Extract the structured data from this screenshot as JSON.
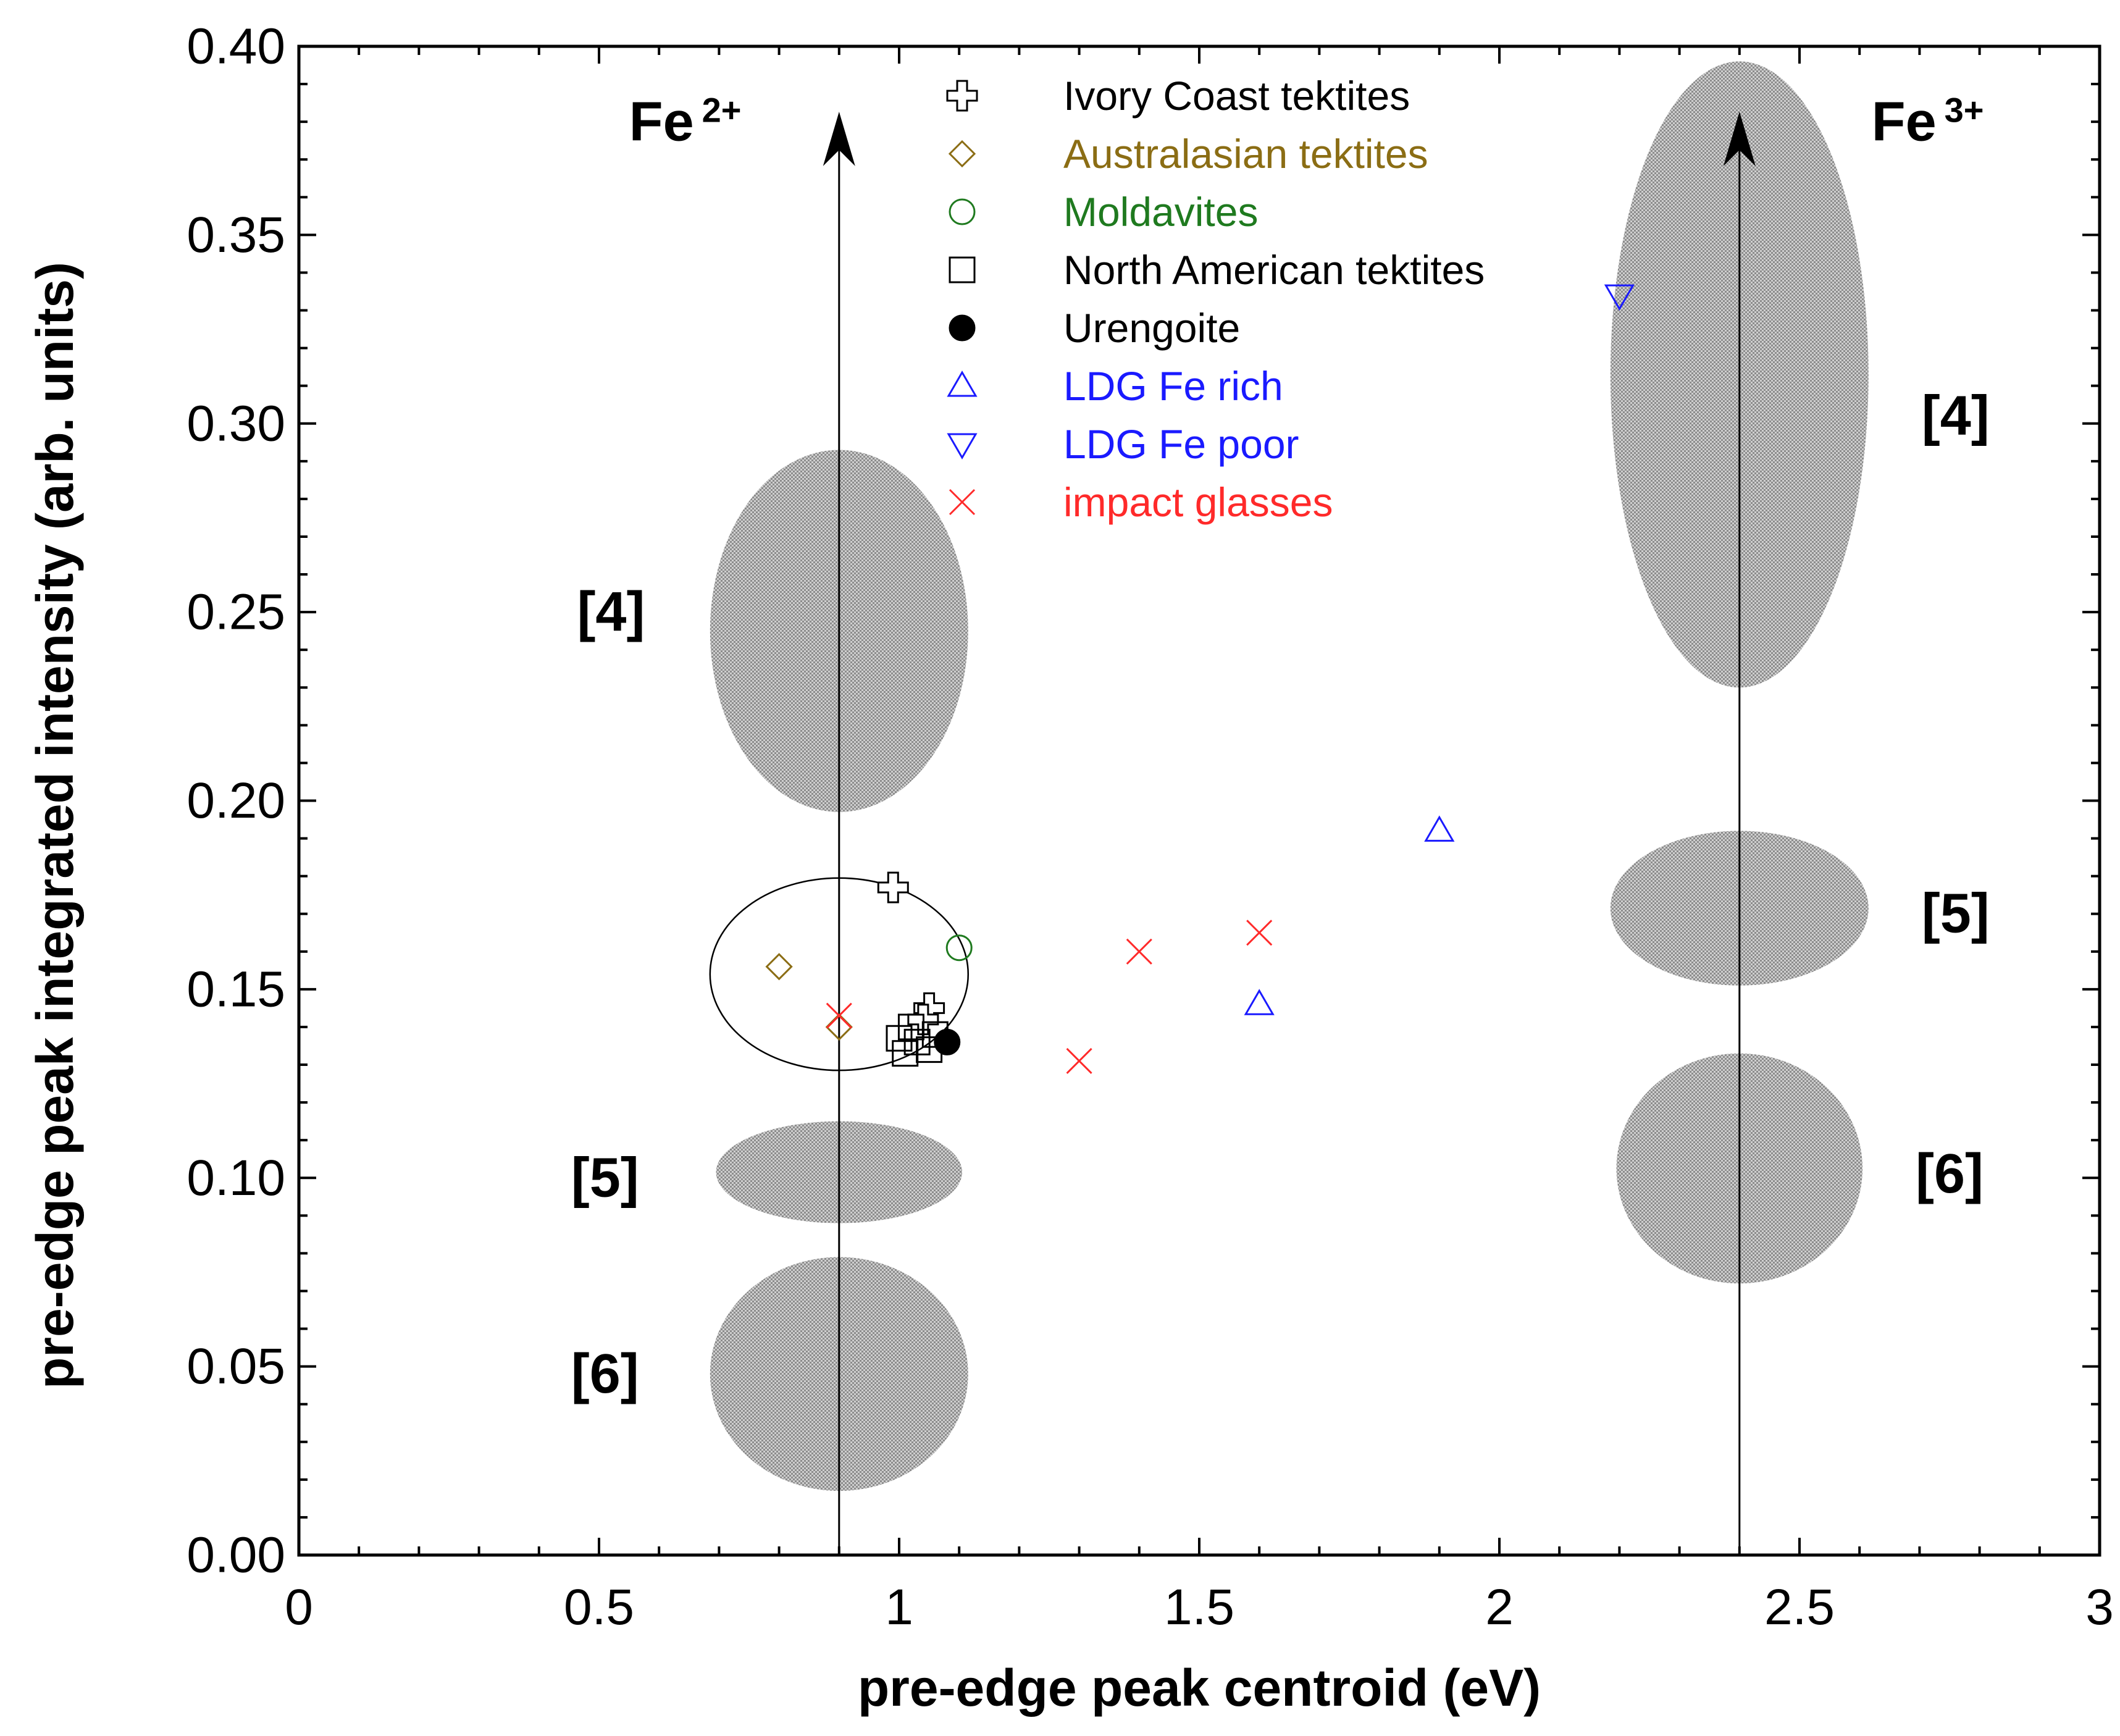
{
  "chart_data": {
    "type": "scatter",
    "xlabel": "pre-edge peak centroid (eV)",
    "ylabel": "pre-edge peak integrated intensity (arb. units)",
    "xlim": [
      0,
      3
    ],
    "ylim": [
      0,
      0.4
    ],
    "x_ticks": [
      "0",
      "0.5",
      "1",
      "1.5",
      "2",
      "2.5",
      "3"
    ],
    "y_ticks": [
      "0.00",
      "0.05",
      "0.10",
      "0.15",
      "0.20",
      "0.25",
      "0.30",
      "0.35",
      "0.40"
    ],
    "x_tick_values": [
      0,
      0.5,
      1,
      1.5,
      2,
      2.5,
      3
    ],
    "y_tick_values": [
      0,
      0.05,
      0.1,
      0.15,
      0.2,
      0.25,
      0.3,
      0.35,
      0.4
    ],
    "legend_position": "top-center",
    "series": [
      {
        "name": "Ivory Coast tektites",
        "marker": "cross-open",
        "color": "#000000",
        "points": [
          [
            0.99,
            0.177
          ],
          [
            1.05,
            0.145
          ],
          [
            1.04,
            0.142
          ]
        ]
      },
      {
        "name": "Australasian tektites",
        "marker": "diamond-open",
        "color": "#8b6d14",
        "points": [
          [
            0.8,
            0.156
          ],
          [
            0.9,
            0.14
          ]
        ]
      },
      {
        "name": "Moldavites",
        "marker": "circle-open",
        "color": "#1f7a1f",
        "points": [
          [
            1.1,
            0.161
          ]
        ]
      },
      {
        "name": "North American tektites",
        "marker": "square-open",
        "color": "#000000",
        "points": [
          [
            1.0,
            0.137
          ],
          [
            1.01,
            0.133
          ],
          [
            1.03,
            0.136
          ],
          [
            1.05,
            0.134
          ],
          [
            1.06,
            0.138
          ],
          [
            1.02,
            0.14
          ]
        ]
      },
      {
        "name": "Urengoite",
        "marker": "circle-filled",
        "color": "#000000",
        "points": [
          [
            1.08,
            0.136
          ]
        ]
      },
      {
        "name": "LDG Fe rich",
        "marker": "triangle-up-open",
        "color": "#1a1aff",
        "points": [
          [
            1.9,
            0.192
          ],
          [
            1.6,
            0.146
          ]
        ]
      },
      {
        "name": "LDG Fe poor",
        "marker": "triangle-down-open",
        "color": "#1a1aff",
        "points": [
          [
            2.2,
            0.334
          ]
        ]
      },
      {
        "name": "impact glasses",
        "marker": "x",
        "color": "#ff2a2a",
        "points": [
          [
            0.9,
            0.143
          ],
          [
            1.3,
            0.131
          ],
          [
            1.4,
            0.16
          ],
          [
            1.6,
            0.165
          ]
        ]
      }
    ],
    "regions": [
      {
        "label": "[4]",
        "ion": "Fe2+",
        "cx": 0.9,
        "cy": 0.245,
        "rx": 0.215,
        "ry": 0.048,
        "label_at": [
          0.52,
          0.25
        ]
      },
      {
        "label": "[5]",
        "ion": "Fe2+",
        "cx": 0.9,
        "cy": 0.1015,
        "rx": 0.205,
        "ry": 0.0135,
        "label_at": [
          0.51,
          0.1
        ]
      },
      {
        "label": "[6]",
        "ion": "Fe2+",
        "cx": 0.9,
        "cy": 0.048,
        "rx": 0.215,
        "ry": 0.031,
        "label_at": [
          0.51,
          0.048
        ]
      },
      {
        "label": "[4]",
        "ion": "Fe3+",
        "cx": 2.4,
        "cy": 0.313,
        "rx": 0.215,
        "ry": 0.083,
        "label_at": [
          2.76,
          0.302
        ]
      },
      {
        "label": "[5]",
        "ion": "Fe3+",
        "cx": 2.4,
        "cy": 0.1715,
        "rx": 0.215,
        "ry": 0.0205,
        "label_at": [
          2.76,
          0.17
        ]
      },
      {
        "label": "[6]",
        "ion": "Fe3+",
        "cx": 2.4,
        "cy": 0.1025,
        "rx": 0.205,
        "ry": 0.0305,
        "label_at": [
          2.75,
          0.101
        ]
      }
    ],
    "sample_envelope": {
      "cx": 0.9,
      "cy": 0.154,
      "rx": 0.215,
      "ry": 0.0255
    },
    "reference_lines": [
      {
        "label": "Fe",
        "superscript": "2+",
        "x": 0.9,
        "y_start": 0.0,
        "y_end": 0.382,
        "label_at": [
          0.55,
          0.375
        ]
      },
      {
        "label": "Fe",
        "superscript": "3+",
        "x": 2.4,
        "y_start": 0.0,
        "y_end": 0.382,
        "label_at": [
          2.62,
          0.375
        ]
      }
    ]
  },
  "legend_labels": [
    "Ivory Coast tektites",
    "Australasian tektites",
    "Moldavites",
    "North American tektites",
    "Urengoite",
    "LDG Fe rich",
    "LDG Fe poor",
    "impact glasses"
  ]
}
